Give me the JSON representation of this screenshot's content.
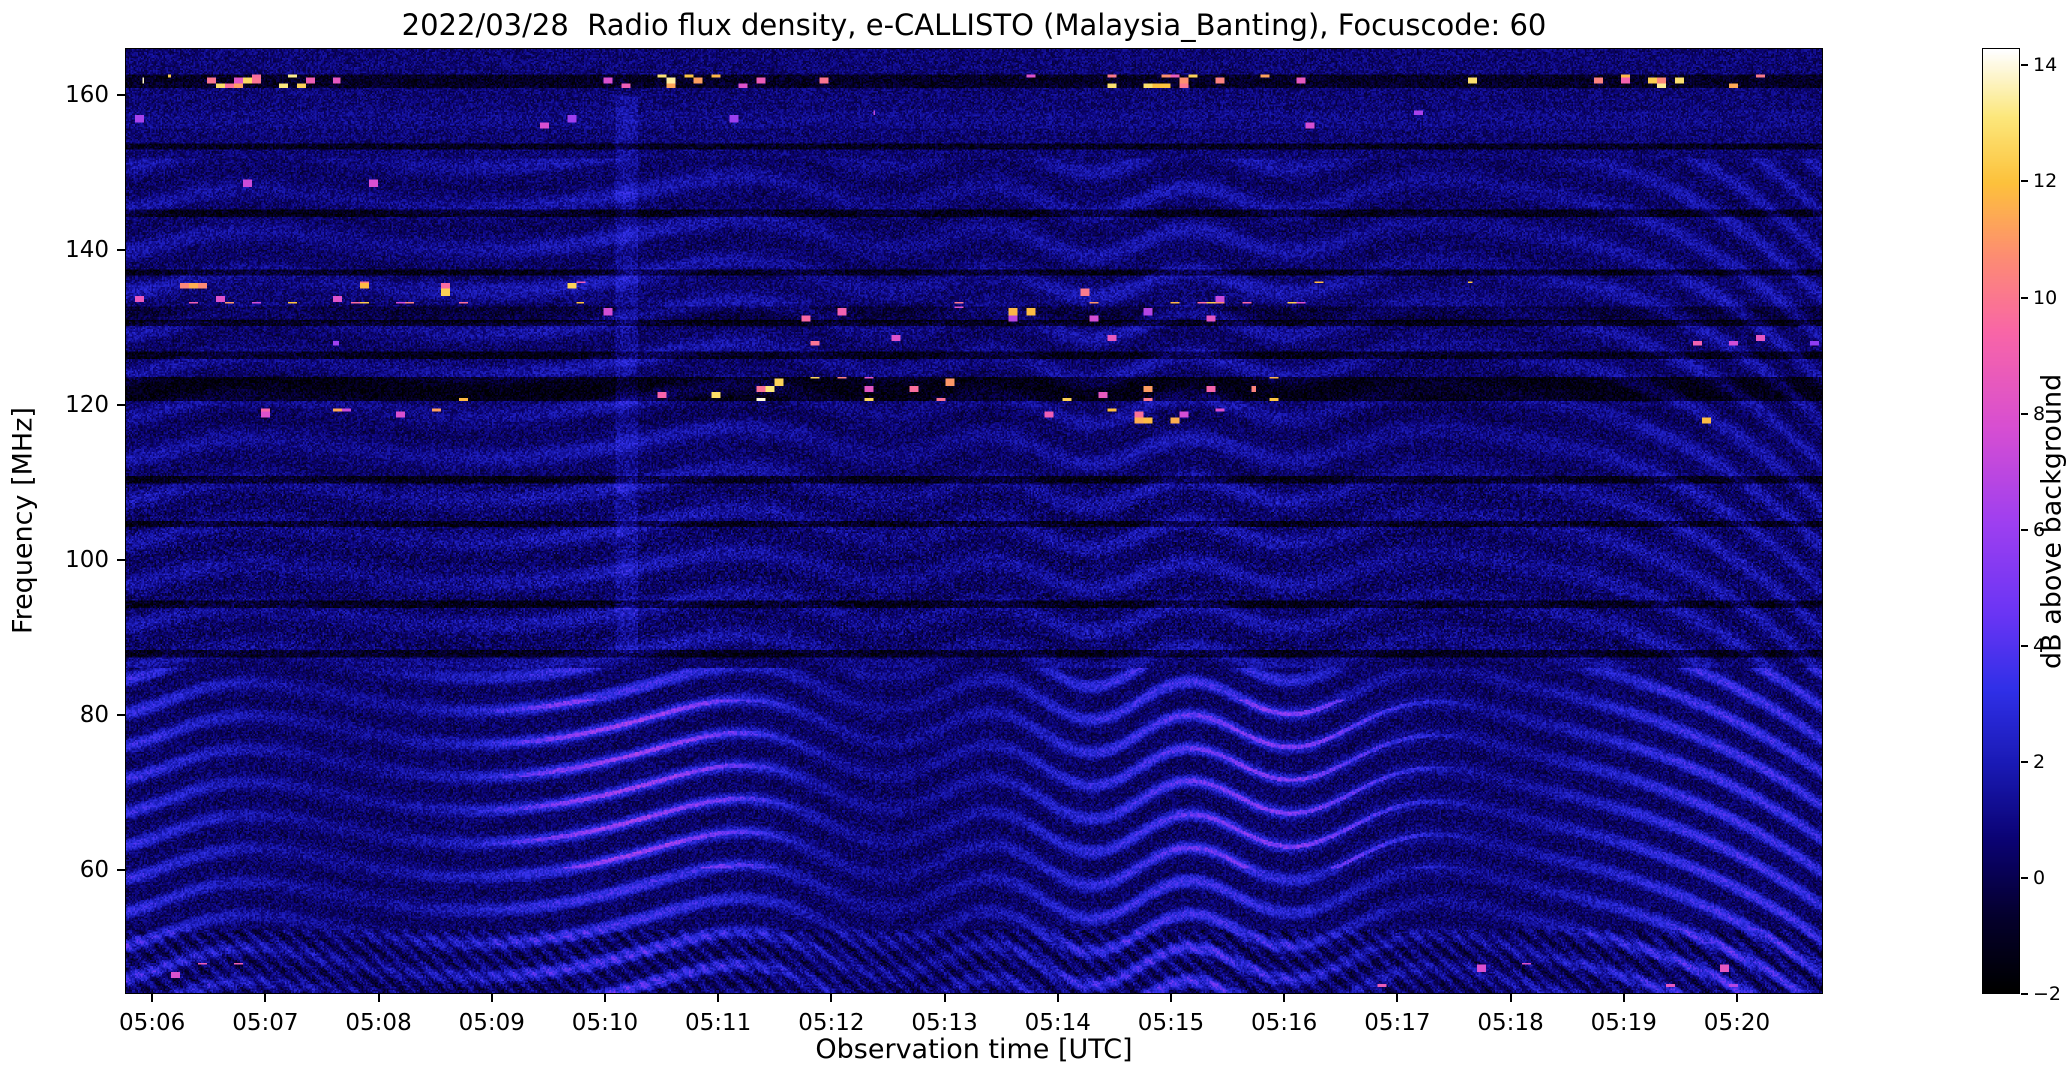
{
  "chart_data": {
    "type": "heatmap",
    "title": "2022/03/28  Radio flux density, e-CALLISTO (Malaysia_Banting), Focuscode: 60",
    "xlabel": "Observation time [UTC]",
    "ylabel": "Frequency [MHz]",
    "x_axis": {
      "lim_minutes_utc": [
        305.76,
        320.76
      ],
      "ticks": [
        {
          "value": 306,
          "label": "05:06"
        },
        {
          "value": 307,
          "label": "05:07"
        },
        {
          "value": 308,
          "label": "05:08"
        },
        {
          "value": 309,
          "label": "05:09"
        },
        {
          "value": 310,
          "label": "05:10"
        },
        {
          "value": 311,
          "label": "05:11"
        },
        {
          "value": 312,
          "label": "05:12"
        },
        {
          "value": 313,
          "label": "05:13"
        },
        {
          "value": 314,
          "label": "05:14"
        },
        {
          "value": 315,
          "label": "05:15"
        },
        {
          "value": 316,
          "label": "05:16"
        },
        {
          "value": 317,
          "label": "05:17"
        },
        {
          "value": 318,
          "label": "05:18"
        },
        {
          "value": 319,
          "label": "05:19"
        },
        {
          "value": 320,
          "label": "05:20"
        }
      ]
    },
    "y_axis": {
      "lim_mhz": [
        44,
        166
      ],
      "ticks": [
        {
          "value": 60,
          "label": "60"
        },
        {
          "value": 80,
          "label": "80"
        },
        {
          "value": 100,
          "label": "100"
        },
        {
          "value": 120,
          "label": "120"
        },
        {
          "value": 140,
          "label": "140"
        },
        {
          "value": 160,
          "label": "160"
        }
      ]
    },
    "colorbar": {
      "label": "dB above background",
      "vmin": -2,
      "vmax": 14.3,
      "ticks": [
        {
          "value": -2,
          "label": "−2"
        },
        {
          "value": 0,
          "label": "0"
        },
        {
          "value": 2,
          "label": "2"
        },
        {
          "value": 4,
          "label": "4"
        },
        {
          "value": 6,
          "label": "6"
        },
        {
          "value": 8,
          "label": "8"
        },
        {
          "value": 10,
          "label": "10"
        },
        {
          "value": 12,
          "label": "12"
        },
        {
          "value": 14,
          "label": "14"
        }
      ]
    },
    "colormap": {
      "name": "gnuplot2-like (black-blue-violet-magenta-orange-yellow-white)",
      "stops": [
        [
          0.0,
          "#000000"
        ],
        [
          0.08,
          "#05002e"
        ],
        [
          0.16,
          "#0b0373"
        ],
        [
          0.24,
          "#1a1ab4"
        ],
        [
          0.32,
          "#3030e8"
        ],
        [
          0.4,
          "#6a35f5"
        ],
        [
          0.5,
          "#a040f0"
        ],
        [
          0.6,
          "#d84fd2"
        ],
        [
          0.7,
          "#f966a8"
        ],
        [
          0.78,
          "#fd8c74"
        ],
        [
          0.86,
          "#fdc23c"
        ],
        [
          0.93,
          "#fce87c"
        ],
        [
          1.0,
          "#ffffff"
        ]
      ]
    },
    "features": {
      "background_db": {
        "min": -0.5,
        "max": 1.2,
        "description": "dark blue noise floor around 0-1 dB"
      },
      "fringe_bands": [
        {
          "range": [
            44,
            86
          ],
          "spacing_mhz": 4.3,
          "amp_db": 2.6,
          "crest_db": 2.4,
          "wobble": 1.0,
          "chirp": true,
          "description": "strong wavy horizontal interference fringes below ~86 MHz, crests reach ~5-6 dB (violet/pink), pattern wobbles in time and becomes fine diagonal stripes after ~05:18"
        },
        {
          "range": [
            86,
            152
          ],
          "spacing_mhz": 5.4,
          "amp_db": 0.9,
          "crest_db": 0,
          "wobble": 0.7,
          "chirp": true,
          "description": "faint wavy ripple pattern across 86-152 MHz"
        }
      ],
      "dark_lines_mhz": [
        87.8,
        94.2,
        104.6,
        110.3,
        126.4,
        130.6,
        137.2,
        144.8,
        153.5
      ],
      "rfi_bands": [
        {
          "freq_mhz": 161.9,
          "halfwidth_mhz": 0.9,
          "base_db": -1.6,
          "speckle_prob": 0.1,
          "speckle_db": 14,
          "gate_freq": 23,
          "gate_phase": 0.0,
          "description": "dark strip near 162 MHz with bright white/yellow bursts"
        },
        {
          "freq_mhz": 157.0,
          "halfwidth_mhz": 1.2,
          "base_db": 0.3,
          "speckle_prob": 0.02,
          "speckle_db": 8,
          "gate_freq": 17,
          "gate_phase": 2.1,
          "description": "occasional pink dashes near 157 MHz"
        },
        {
          "freq_mhz": 148.8,
          "halfwidth_mhz": 0.5,
          "base_db": 0.0,
          "speckle_prob": 0.006,
          "speckle_db": 9,
          "gate_freq": 5,
          "gate_phase": 1.0,
          "description": "sparse pink dots near 149 MHz"
        },
        {
          "freq_mhz": 134.6,
          "halfwidth_mhz": 1.4,
          "base_db": 0.2,
          "speckle_prob": 0.05,
          "speckle_db": 13,
          "gate_freq": 11,
          "gate_phase": 0.7,
          "description": "band near 134 MHz with yellow/orange bursts"
        },
        {
          "freq_mhz": 131.8,
          "halfwidth_mhz": 1.0,
          "base_db": -0.8,
          "speckle_prob": 0.04,
          "speckle_db": 12,
          "gate_freq": 9,
          "gate_phase": 3.6,
          "description": "dark line near 132 MHz with colored bursts"
        },
        {
          "freq_mhz": 128.4,
          "halfwidth_mhz": 0.7,
          "base_db": 0.0,
          "speckle_prob": 0.02,
          "speckle_db": 10,
          "gate_freq": 13,
          "gate_phase": 1.2,
          "description": "sparse bursts near 128 MHz"
        },
        {
          "freq_mhz": 122.1,
          "halfwidth_mhz": 1.6,
          "base_db": -1.8,
          "speckle_prob": 0.035,
          "speckle_db": 14,
          "gate_freq": 7,
          "gate_phase": 4.4,
          "description": "very dark airband strip 120-124 MHz with intermittent white/yellow bursts"
        },
        {
          "freq_mhz": 118.6,
          "halfwidth_mhz": 0.9,
          "base_db": -0.2,
          "speckle_prob": 0.025,
          "speckle_db": 12,
          "gate_freq": 15,
          "gate_phase": 5.0,
          "description": "bursts near 118-119 MHz"
        },
        {
          "freq_mhz": 46.2,
          "halfwidth_mhz": 1.6,
          "base_db": 0.0,
          "speckle_prob": 0.008,
          "speckle_db": 9,
          "gate_freq": 6,
          "gate_phase": 2.4,
          "description": "few pink dots near 46 MHz late in the interval"
        }
      ],
      "vertical_enhancements": [
        {
          "t_frac": 0.295,
          "width_frac": 0.014,
          "freq_range": [
            88,
            160
          ],
          "db": 0.8,
          "description": "faint brighter column near 05:10"
        }
      ],
      "low_band_texture": {
        "f_max_mhz": 52,
        "stripe_db": 0.8,
        "description": "fine vertical striping / speckle texture below 52 MHz"
      }
    }
  }
}
